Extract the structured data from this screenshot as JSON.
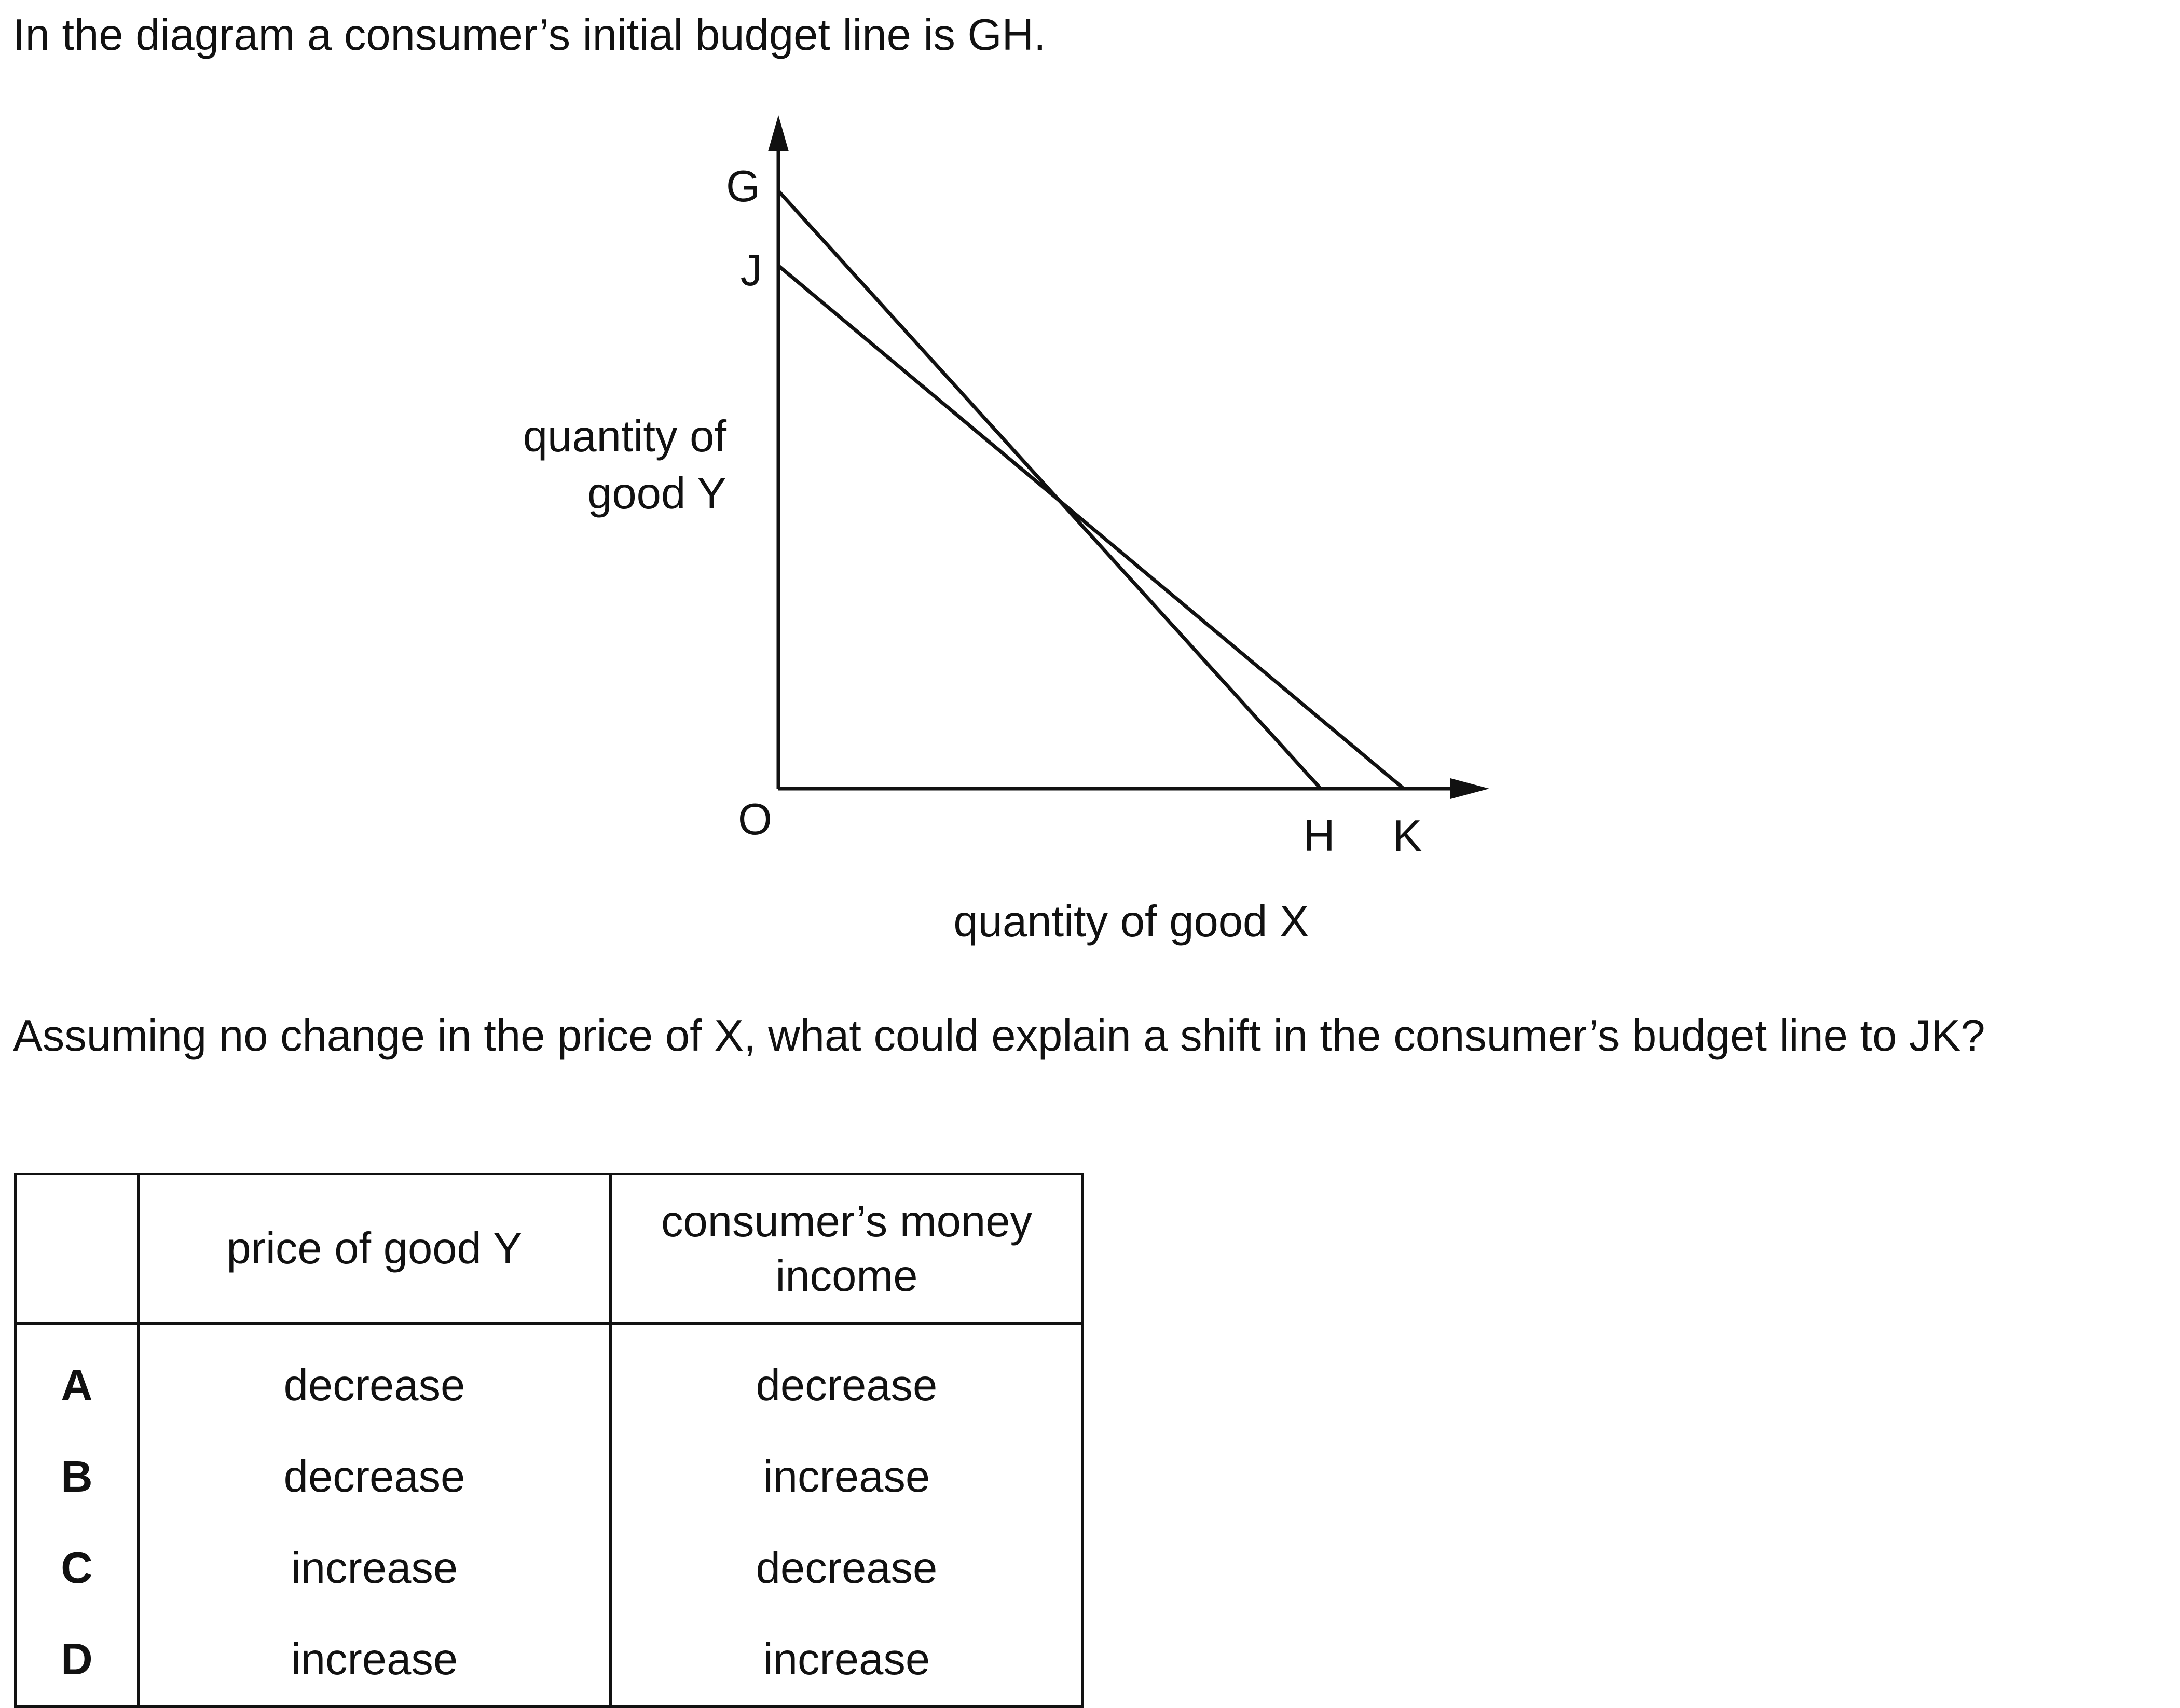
{
  "intro": "In the diagram a consumer’s initial budget line is GH.",
  "diagram": {
    "y_axis_label_line1": "quantity of",
    "y_axis_label_line2": "good Y",
    "x_axis_label": "quantity of good X",
    "origin_label": "O",
    "point_g": "G",
    "point_j": "J",
    "point_h": "H",
    "point_k": "K"
  },
  "question": "Assuming no change in the price of X, what could explain a shift in the consumer’s budget line to JK?",
  "table": {
    "headers": [
      "",
      "price of good Y",
      "consumer’s money income"
    ],
    "rows": [
      {
        "key": "A",
        "price": "decrease",
        "income": "decrease"
      },
      {
        "key": "B",
        "price": "decrease",
        "income": "increase"
      },
      {
        "key": "C",
        "price": "increase",
        "income": "decrease"
      },
      {
        "key": "D",
        "price": "increase",
        "income": "increase"
      }
    ]
  }
}
